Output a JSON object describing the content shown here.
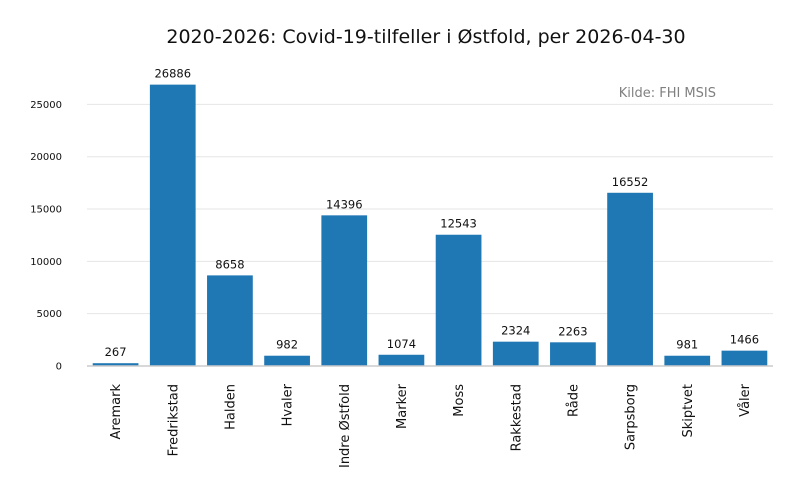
{
  "chart_data": {
    "type": "bar",
    "title": "2020-2026: Covid-19-tilfeller i Østfold, per 2026-04-30",
    "source_note": "Kilde: FHI MSIS",
    "xlabel": "",
    "ylabel": "",
    "categories": [
      "Aremark",
      "Fredrikstad",
      "Halden",
      "Hvaler",
      "Indre Østfold",
      "Marker",
      "Moss",
      "Rakkestad",
      "Råde",
      "Sarpsborg",
      "Skiptvet",
      "Våler"
    ],
    "values": [
      267,
      26886,
      8658,
      982,
      14396,
      1074,
      12543,
      2324,
      2263,
      16552,
      981,
      1466
    ],
    "ylim": [
      0,
      27000
    ],
    "yticks": [
      0,
      5000,
      10000,
      15000,
      20000,
      25000
    ],
    "grid": true,
    "bar_color": "#1f77b4",
    "data_labels": true
  }
}
